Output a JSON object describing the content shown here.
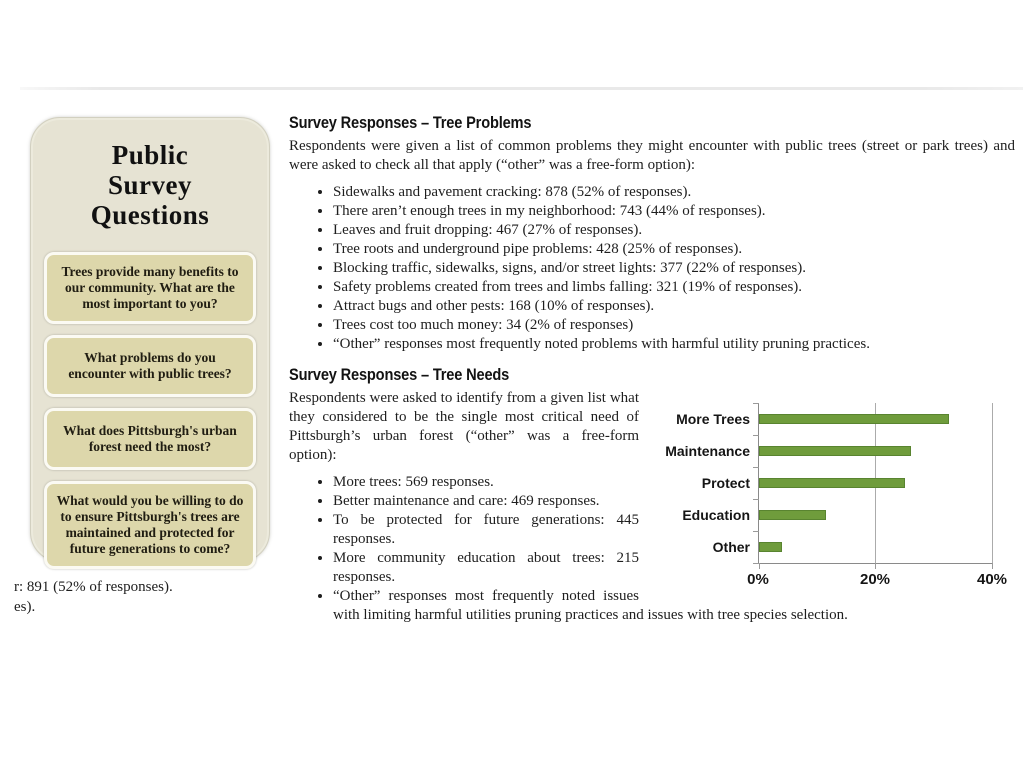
{
  "sidebar": {
    "title": "Public Survey Questions",
    "title_lines": [
      "Public",
      "Survey",
      "Questions"
    ],
    "questions": [
      "Trees provide many benefits to our community.  What are the most important to you?",
      "What problems do you encounter with public trees?",
      "What does Pittsburgh's urban forest need the most?",
      "What would you be willing to do to ensure Pittsburgh's trees are maintained and protected for future generations to come?"
    ]
  },
  "sections": [
    {
      "heading": "Survey Responses – Tree Problems",
      "intro": "Respondents were given a list of common problems they might encounter with public trees (street or park trees) and were asked to check all that apply (“other” was a free-form option):",
      "bullets": [
        "Sidewalks and pavement cracking: 878 (52% of responses).",
        "There aren’t enough trees in my neighborhood: 743 (44% of responses).",
        "Leaves and fruit dropping: 467 (27% of responses).",
        "Tree roots and underground pipe problems: 428 (25% of responses).",
        "Blocking traffic, sidewalks, signs, and/or street lights: 377 (22% of responses).",
        "Safety problems created from trees and limbs falling: 321 (19% of responses).",
        "Attract bugs and other pests: 168 (10% of responses).",
        "Trees cost too much money: 34 (2% of responses)",
        "“Other” responses most frequently noted problems with harmful utility pruning practices."
      ]
    },
    {
      "heading": "Survey Responses – Tree Needs",
      "intro": "Respondents were asked to identify from a given list what they considered to be the single most critical need of Pittsburgh’s urban forest (“other” was a free-form option):",
      "bullets": [
        "More trees: 569 responses.",
        "Better maintenance and care: 469 responses.",
        "To be protected for future generations: 445 responses.",
        "More community education about trees: 215 responses.",
        "“Other” responses most frequently noted issues with limiting harmful utilities pruning practices and issues with tree species selection."
      ]
    }
  ],
  "fragments": [
    "r: 891 (52% of responses).",
    "es)."
  ],
  "chart_data": {
    "type": "bar",
    "orientation": "horizontal",
    "title": "",
    "categories": [
      "More Trees",
      "Maintenance",
      "Protect",
      "Education",
      "Other"
    ],
    "values": [
      32.5,
      26,
      25,
      11.5,
      4
    ],
    "unit": "%",
    "xlabel": "",
    "ylabel": "",
    "xlim": [
      0,
      40
    ],
    "xticks": [
      "0%",
      "20%",
      "40%"
    ],
    "grid": true,
    "legend": false,
    "bar_color": "#6f9c3c",
    "bar_border_color": "#598430",
    "grid_color": "#ababab"
  },
  "colors": {
    "sidebar_bg": "#e6e3d3",
    "question_box_bg": "#ddd7ab",
    "accent_green": "#6f9c3c",
    "text": "#1e1e1e"
  }
}
